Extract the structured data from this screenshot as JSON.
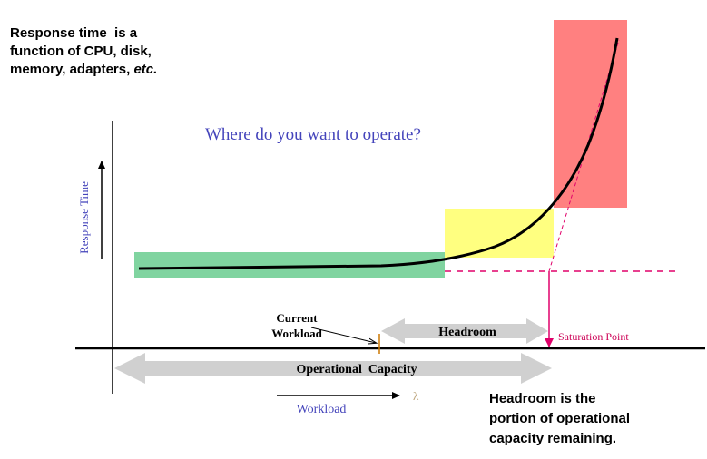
{
  "intro_note": {
    "line1": "Response time  is a",
    "line2": "function of CPU, disk,",
    "line3_prefix": "memory, adapters, ",
    "line3_italic": "etc."
  },
  "question": "Where do you want to operate?",
  "y_axis_label": "Response Time",
  "current_workload_label_1": "Current",
  "current_workload_label_2": "Workload",
  "headroom_label": "Headroom",
  "saturation_label": "Saturation Point",
  "operational_capacity_label": "Operational  Capacity",
  "workload_label": "Workload",
  "lambda_symbol": "λ",
  "summary_note": {
    "line1": "Headroom is the",
    "line2": "portion of operational",
    "line3": "capacity remaining."
  },
  "colors": {
    "safe_zone": "#80d4a0",
    "caution_zone": "#ffff80",
    "danger_zone": "#ff8080",
    "curve": "#000000",
    "dashed": "#e0006a",
    "blue_text": "#4444bb",
    "saturation_text": "#cc0055",
    "arrow_fill": "#d0d0d0",
    "lambda": "#bfa880"
  }
}
